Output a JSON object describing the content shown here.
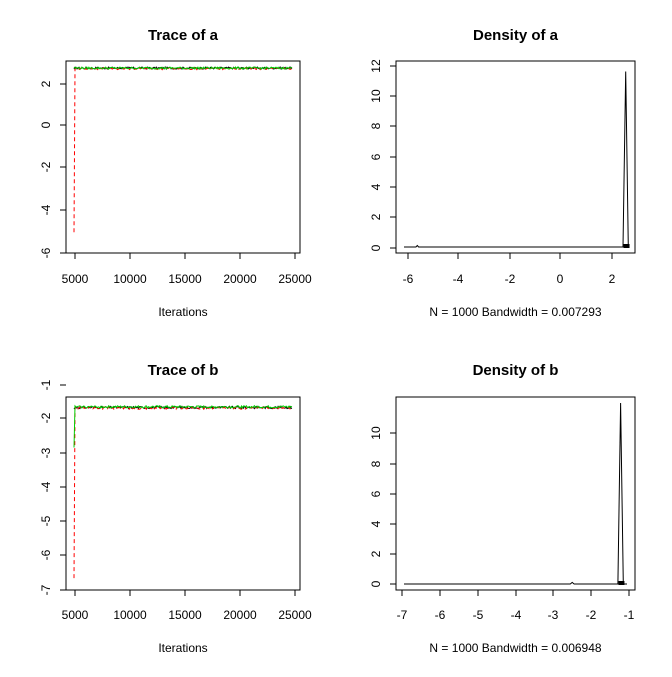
{
  "chart_data": [
    {
      "type": "line",
      "title": "Trace of a",
      "xlabel": "Iterations",
      "ylabel": "",
      "xlim": [
        5000,
        25000
      ],
      "ylim": [
        -6,
        2.6
      ],
      "x_ticks": [
        "5000",
        "10000",
        "15000",
        "20000",
        "25000"
      ],
      "y_ticks": [
        "-6",
        "-4",
        "-2",
        "0",
        "2"
      ],
      "series": [
        {
          "color": "#000000",
          "start": 2.5,
          "level": 2.55,
          "noise": 0.05
        },
        {
          "color": "#ff0000",
          "start": -5.3,
          "level": 2.52,
          "noise": 0.05
        },
        {
          "color": "#00cc00",
          "start": 2.6,
          "level": 2.55,
          "noise": 0.05
        }
      ]
    },
    {
      "type": "line",
      "title": "Density of a",
      "xlabel": "N = 1000   Bandwidth = 0.007293",
      "ylabel": "",
      "xlim": [
        -5.8,
        2.6
      ],
      "ylim": [
        0,
        12
      ],
      "x_ticks": [
        "-6",
        "-4",
        "-2",
        "0",
        "2"
      ],
      "y_ticks": [
        "0",
        "2",
        "4",
        "6",
        "8",
        "10",
        "12"
      ],
      "peak": {
        "x": 2.55,
        "y": 11.7
      },
      "minor_bump": {
        "x": -5.3,
        "y": 0.1
      }
    },
    {
      "type": "line",
      "title": "Trace of b",
      "xlabel": "Iterations",
      "ylabel": "",
      "xlim": [
        5000,
        25000
      ],
      "ylim": [
        -7,
        -0.9
      ],
      "x_ticks": [
        "5000",
        "10000",
        "15000",
        "20000",
        "25000"
      ],
      "y_ticks": [
        "-7",
        "-6",
        "-5",
        "-4",
        "-3",
        "-2",
        "-1"
      ],
      "series": [
        {
          "color": "#000000",
          "start": -1.1,
          "level": -1.05,
          "noise": 0.04
        },
        {
          "color": "#ff0000",
          "start": -6.8,
          "level": -1.07,
          "noise": 0.04
        },
        {
          "color": "#00cc00",
          "start": -2.4,
          "level": -1.03,
          "noise": 0.04
        }
      ]
    },
    {
      "type": "line",
      "title": "Density of b",
      "xlabel": "N = 1000   Bandwidth = 0.006948",
      "ylabel": "",
      "xlim": [
        -6.8,
        -0.9
      ],
      "ylim": [
        0,
        11.5
      ],
      "x_ticks": [
        "-7",
        "-6",
        "-5",
        "-4",
        "-3",
        "-2",
        "-1"
      ],
      "y_ticks": [
        "0",
        "2",
        "4",
        "6",
        "8",
        "10"
      ],
      "peak": {
        "x": -1.07,
        "y": 11.5
      },
      "minor_bump": {
        "x": -2.35,
        "y": 0.1
      }
    }
  ]
}
